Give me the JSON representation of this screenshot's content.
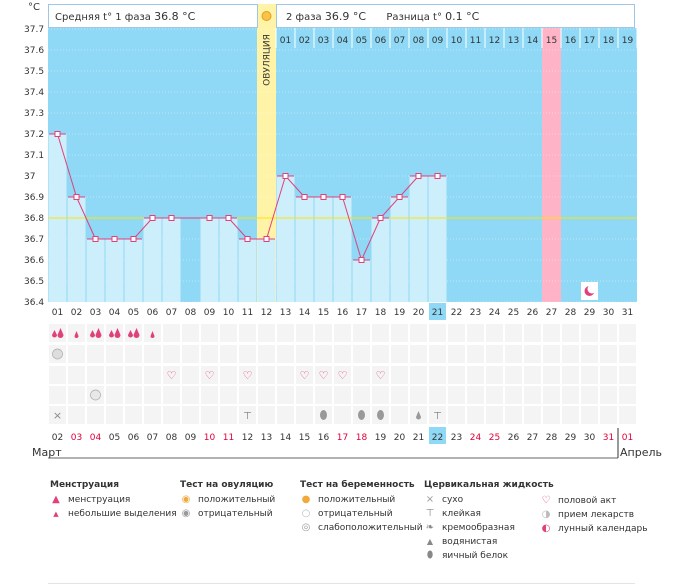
{
  "units": "°C",
  "header": {
    "phase1_label": "Средняя t° 1 фаза",
    "phase1_value": "36.8 °C",
    "phase2_label": "2 фаза",
    "phase2_value": "36.9 °C",
    "diff_label": "Разница t°",
    "diff_value": "0.1 °C"
  },
  "ovulation_label": "ОВУЛЯЦИЯ",
  "months": {
    "start": "Март",
    "end": "Апрель"
  },
  "colors": {
    "plot_bg": "#8fd8f6",
    "bar": "#cdeefb",
    "line": "#e0417b",
    "ovulation": "#fff3a8",
    "pink_col": "#ffb3c6",
    "avg_line": "#ffe600",
    "weekend": "#e0003a"
  },
  "chart_data": {
    "type": "line",
    "title": "Базальная температура",
    "ylabel": "°C",
    "ylim": [
      36.4,
      37.7
    ],
    "yticks": [
      "36.4",
      "36.5",
      "36.6",
      "36.7",
      "36.8",
      "36.9",
      "37",
      "37.1",
      "37.2",
      "37.3",
      "37.4",
      "37.5",
      "37.6",
      "37.7"
    ],
    "average_line": 36.8,
    "x_cycle_days": [
      "01",
      "02",
      "03",
      "04",
      "05",
      "06",
      "07",
      "08",
      "09",
      "10",
      "11",
      "12",
      "13",
      "14",
      "15",
      "16",
      "17",
      "18",
      "19",
      "20",
      "21",
      "22",
      "23",
      "24",
      "25",
      "26",
      "27",
      "28",
      "29",
      "30",
      "31"
    ],
    "x_top_labels": [
      "01",
      "02",
      "03",
      "04",
      "05",
      "06",
      "07",
      "08",
      "09",
      "10",
      "11",
      "12",
      "13",
      "14",
      "15",
      "16",
      "17",
      "18",
      "19"
    ],
    "highlighted_cycle_day": "21",
    "dates": [
      "02",
      "03",
      "04",
      "05",
      "06",
      "07",
      "08",
      "09",
      "10",
      "11",
      "12",
      "13",
      "14",
      "15",
      "16",
      "17",
      "18",
      "19",
      "20",
      "21",
      "22",
      "23",
      "24",
      "25",
      "26",
      "27",
      "28",
      "29",
      "30",
      "31",
      "01"
    ],
    "weekend_dates": [
      1,
      2,
      8,
      9,
      15,
      16,
      22,
      23,
      29,
      30
    ],
    "today_index": 20,
    "ovulation_index": 11,
    "pink_column_index": 26,
    "series": [
      {
        "name": "Температура",
        "values": [
          37.2,
          36.9,
          36.7,
          36.7,
          36.7,
          36.8,
          36.8,
          null,
          36.8,
          36.8,
          36.7,
          36.7,
          37.0,
          36.9,
          36.9,
          36.9,
          36.6,
          36.8,
          36.9,
          37.0,
          37.0,
          null,
          null,
          null,
          null,
          null,
          null,
          null,
          null,
          null,
          null
        ]
      }
    ]
  },
  "symptoms": {
    "menstruation": [
      2,
      1,
      2,
      2,
      2,
      1,
      0,
      0,
      0,
      0,
      0,
      0,
      0,
      0,
      0,
      0,
      0,
      0,
      0,
      0,
      0,
      0,
      0,
      0,
      0,
      0,
      0,
      0,
      0,
      0,
      0
    ],
    "medication": [
      0
    ],
    "intercourse": [
      6,
      8,
      10,
      13,
      14,
      15,
      17
    ],
    "pregnancy_negative": [
      2
    ],
    "fluid": [
      {
        "day": 0,
        "icon": "dry"
      },
      {
        "day": 10,
        "icon": "sticky"
      },
      {
        "day": 14,
        "icon": "egg-white"
      },
      {
        "day": 16,
        "icon": "egg-white"
      },
      {
        "day": 17,
        "icon": "egg-white"
      },
      {
        "day": 19,
        "icon": "watery"
      },
      {
        "day": 20,
        "icon": "sticky"
      }
    ],
    "moon_day": 28
  },
  "legend": {
    "menstruation": {
      "title": "Менструация",
      "items": [
        "менструация",
        "небольшие выделения"
      ]
    },
    "ovulation_test": {
      "title": "Тест на овуляцию",
      "items": [
        "положительный",
        "отрицательный"
      ]
    },
    "pregnancy_test": {
      "title": "Тест на беременность",
      "items": [
        "положительный",
        "отрицательный",
        "слабоположительный"
      ]
    },
    "cervical_fluid": {
      "title": "Цервикальная жидкость",
      "items": [
        "сухо",
        "клейкая",
        "кремообразная",
        "водянистая",
        "яичный белок"
      ]
    },
    "other": {
      "items": [
        "половой акт",
        "прием лекарств",
        "лунный календарь"
      ]
    }
  }
}
